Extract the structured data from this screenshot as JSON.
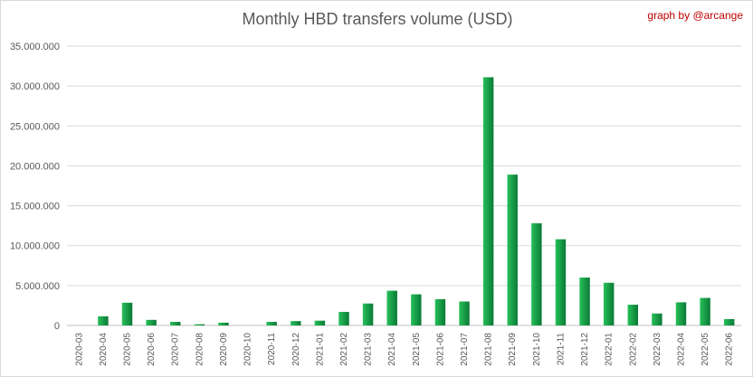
{
  "chart_data": {
    "type": "bar",
    "title": "Monthly HBD transfers volume (USD)",
    "credit": "graph by @arcange",
    "xlabel": "",
    "ylabel": "",
    "ylim": [
      0,
      35000000
    ],
    "grid": true,
    "legend": "none",
    "y_ticks": [
      {
        "value": 0,
        "label": "0"
      },
      {
        "value": 5000000,
        "label": "5.000.000"
      },
      {
        "value": 10000000,
        "label": "10.000.000"
      },
      {
        "value": 15000000,
        "label": "15.000.000"
      },
      {
        "value": 20000000,
        "label": "20.000.000"
      },
      {
        "value": 25000000,
        "label": "25.000.000"
      },
      {
        "value": 30000000,
        "label": "30.000.000"
      },
      {
        "value": 35000000,
        "label": "35.000.000"
      }
    ],
    "categories": [
      "2020-03",
      "2020-04",
      "2020-05",
      "2020-06",
      "2020-07",
      "2020-08",
      "2020-09",
      "2020-10",
      "2020-11",
      "2020-12",
      "2021-01",
      "2021-02",
      "2021-03",
      "2021-04",
      "2021-05",
      "2021-06",
      "2021-07",
      "2021-08",
      "2021-09",
      "2021-10",
      "2021-11",
      "2021-12",
      "2022-01",
      "2022-02",
      "2022-03",
      "2022-04",
      "2022-05",
      "2022-06"
    ],
    "values": [
      0,
      1150000,
      2850000,
      700000,
      450000,
      150000,
      350000,
      0,
      450000,
      550000,
      600000,
      1700000,
      2750000,
      4350000,
      3900000,
      3300000,
      3000000,
      31100000,
      18900000,
      12800000,
      10800000,
      6000000,
      5350000,
      2600000,
      1500000,
      2900000,
      3450000,
      800000
    ],
    "colors": {
      "bar_light": "#27c05a",
      "bar_dark": "#0a7a35",
      "grid": "#d9d9d9",
      "axis": "#bfbfbf"
    }
  }
}
